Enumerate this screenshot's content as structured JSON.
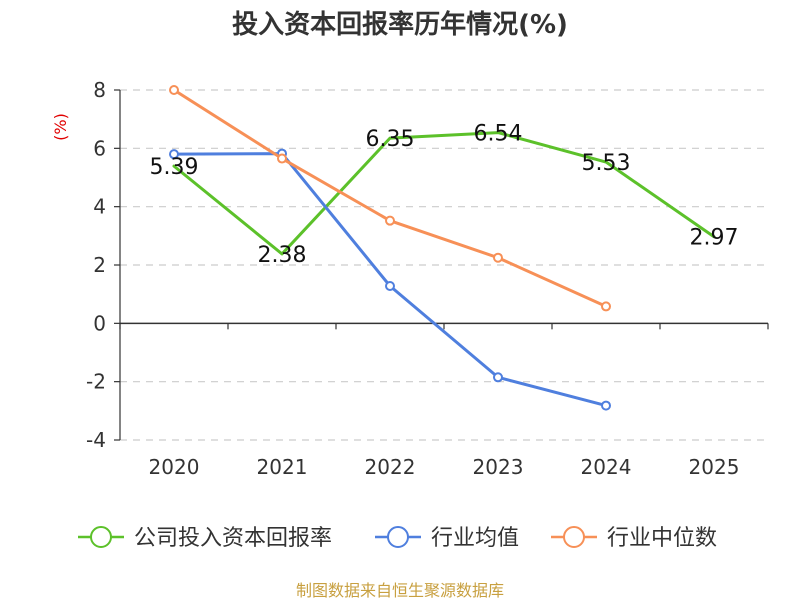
{
  "chart_data": {
    "type": "line",
    "title": "投入资本回报率历年情况(%)",
    "ylabel": "(%)",
    "xlabel": "",
    "categories": [
      "2020",
      "2021",
      "2022",
      "2023",
      "2024",
      "2025"
    ],
    "ylim": [
      -4,
      8
    ],
    "yticks": [
      -4,
      -2,
      0,
      2,
      4,
      6,
      8
    ],
    "grid": true,
    "legend_position": "bottom",
    "series": [
      {
        "name": "公司投入资本回报率",
        "color": "#5cc12a",
        "values": [
          5.39,
          2.38,
          6.35,
          6.54,
          5.53,
          2.97
        ],
        "labels": [
          "5.39",
          "2.38",
          "6.35",
          "6.54",
          "5.53",
          "2.97"
        ],
        "show_labels": true,
        "show_markers": false
      },
      {
        "name": "行业均值",
        "color": "#4f7fde",
        "values": [
          5.8,
          5.82,
          1.28,
          -1.85,
          -2.82,
          null
        ],
        "show_labels": false,
        "show_markers": true
      },
      {
        "name": "行业中位数",
        "color": "#f79057",
        "values": [
          8.0,
          5.65,
          3.52,
          2.25,
          0.58,
          null
        ],
        "show_labels": false,
        "show_markers": true
      }
    ],
    "source": "制图数据来自恒生聚源数据库"
  }
}
